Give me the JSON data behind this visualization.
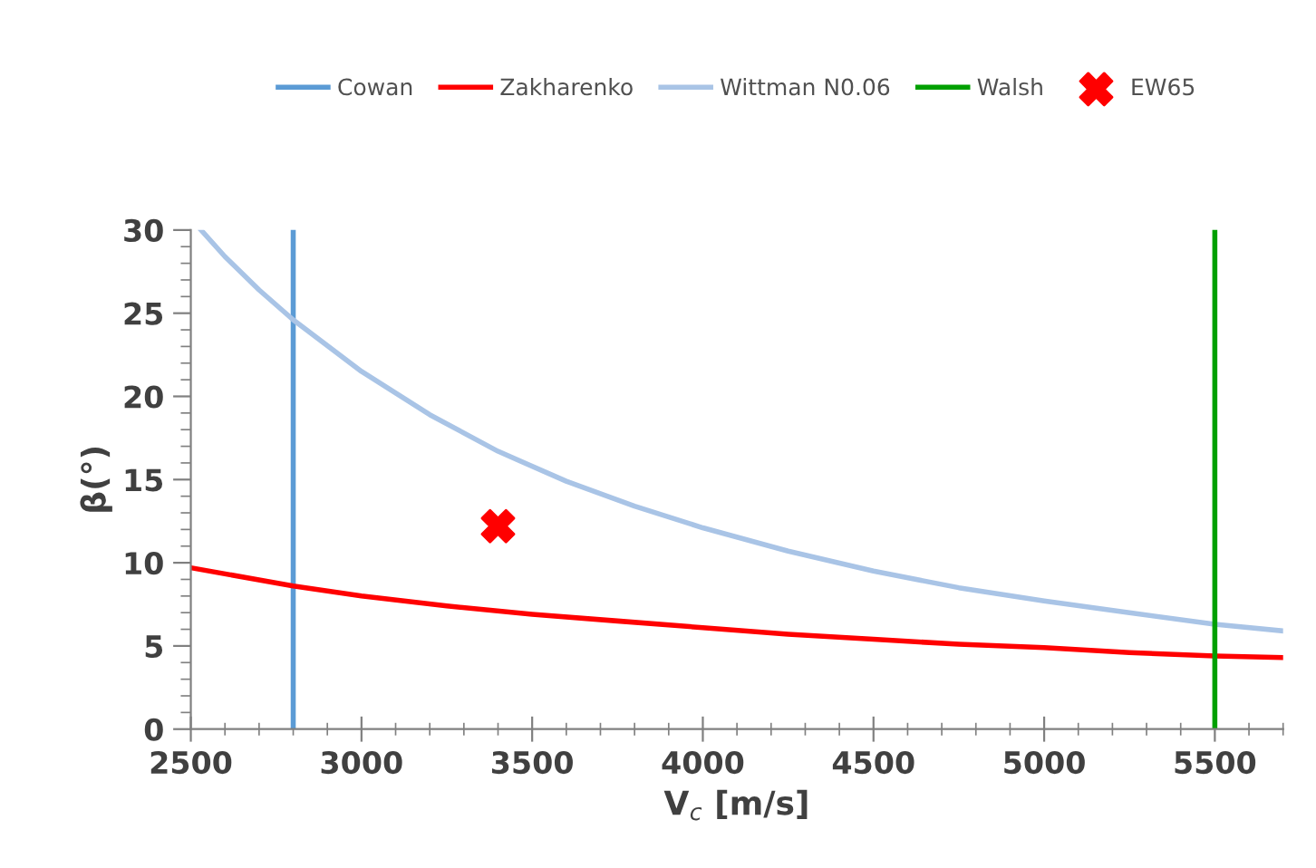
{
  "chart_data": {
    "type": "line",
    "xlabel": "V$_{c}$ [m/s]",
    "ylabel": "β(°)",
    "xlim": [
      2500,
      5700
    ],
    "xticks": [
      2500,
      3000,
      3500,
      4000,
      4500,
      5000,
      5500
    ],
    "ylim": [
      0,
      30
    ],
    "yticks": [
      0,
      5,
      10,
      15,
      20,
      25,
      30
    ],
    "grid": false,
    "legend": "top",
    "marker": "none",
    "line_style": "solid",
    "series": [
      {
        "name": "Cowan",
        "color": "#5b9bd5",
        "x": [
          2800,
          2800
        ],
        "values": [
          0,
          30
        ]
      },
      {
        "name": "Zakharenko",
        "color": "#ff0000",
        "x": [
          2500,
          2800,
          3000,
          3250,
          3500,
          3750,
          4000,
          4250,
          4500,
          4750,
          5000,
          5250,
          5500,
          5700
        ],
        "values": [
          9.7,
          8.6,
          8.0,
          7.4,
          6.9,
          6.5,
          6.1,
          5.7,
          5.4,
          5.1,
          4.9,
          4.6,
          4.4,
          4.3
        ]
      },
      {
        "name": "Wittman N0.06",
        "color": "#a9c4e6",
        "x": [
          2530,
          2600,
          2700,
          2800,
          3000,
          3200,
          3400,
          3600,
          3800,
          4000,
          4250,
          4500,
          4750,
          5000,
          5250,
          5500,
          5700
        ],
        "values": [
          30,
          28.4,
          26.4,
          24.6,
          21.5,
          18.9,
          16.7,
          14.9,
          13.4,
          12.1,
          10.7,
          9.5,
          8.5,
          7.7,
          7.0,
          6.3,
          5.9
        ]
      },
      {
        "name": "Walsh",
        "color": "#00a000",
        "x": [
          5500,
          5500
        ],
        "values": [
          0,
          30
        ]
      },
      {
        "name": "EW65",
        "color": "#ff0000",
        "type": "scatter",
        "marker": "cross",
        "x": [
          3400
        ],
        "values": [
          12.2
        ]
      }
    ]
  }
}
